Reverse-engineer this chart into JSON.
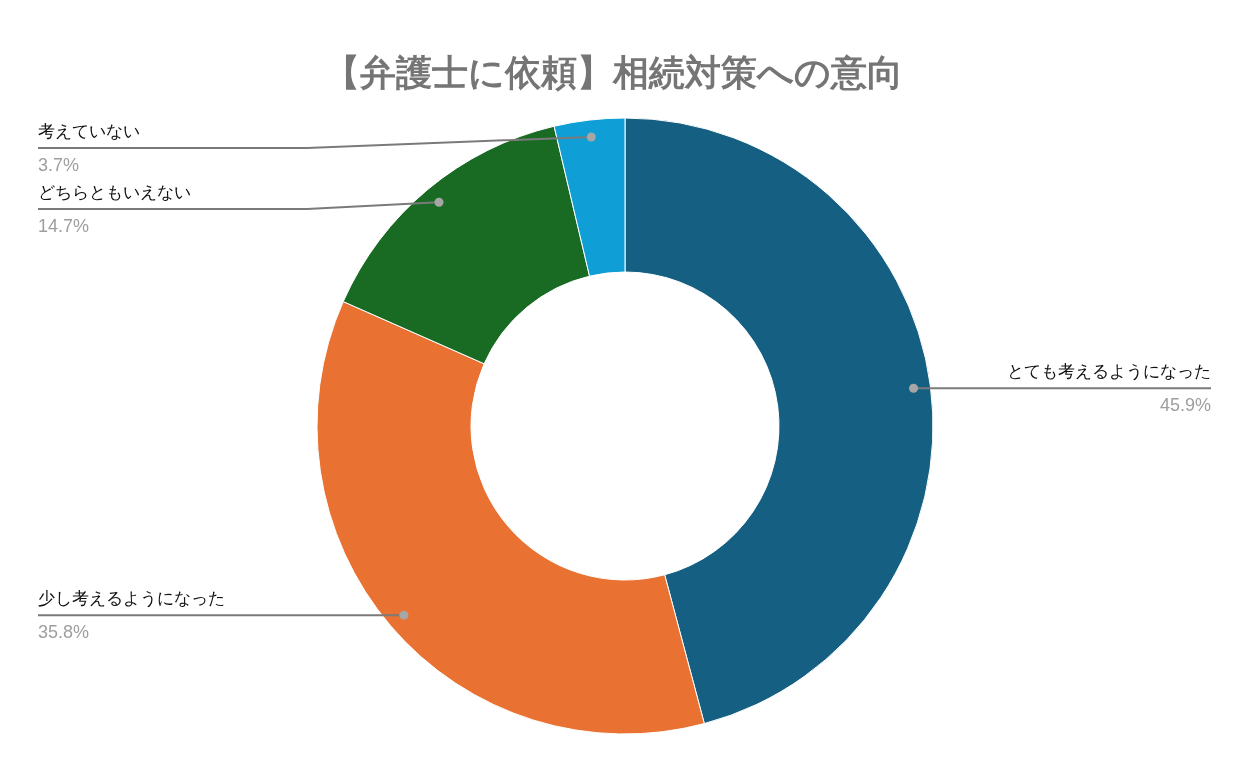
{
  "chart_data": {
    "type": "donut",
    "title": "【弁護士に依頼】相続対策への意向",
    "categories": [
      "とても考えるようになった",
      "少し考えるようになった",
      "どちらともいえない",
      "考えていない"
    ],
    "values": [
      45.9,
      35.8,
      14.7,
      3.7
    ],
    "colors": [
      "#156082",
      "#e97132",
      "#196b24",
      "#0f9ed5"
    ],
    "value_labels": [
      "45.9%",
      "35.8%",
      "14.7%",
      "3.7%"
    ]
  }
}
